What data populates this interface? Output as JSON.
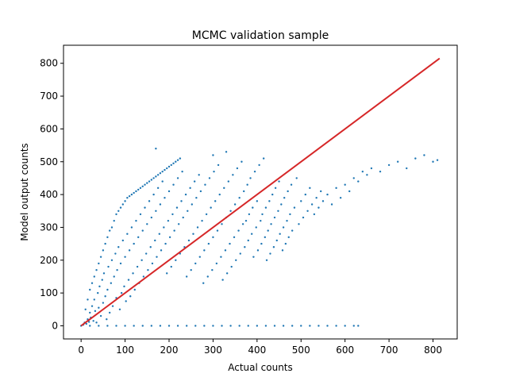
{
  "chart_data": {
    "type": "scatter",
    "title": "MCMC validation sample",
    "xlabel": "Actual counts",
    "ylabel": "Model output counts",
    "xlim": [
      -40,
      855
    ],
    "ylim": [
      -40,
      855
    ],
    "xticks": [
      0,
      100,
      200,
      300,
      400,
      500,
      600,
      700,
      800
    ],
    "yticks": [
      0,
      100,
      200,
      300,
      400,
      500,
      600,
      700,
      800
    ],
    "grid": false,
    "series": [
      {
        "color": "#1f77b4",
        "marker": "point",
        "points": [
          [
            0,
            0
          ],
          [
            5,
            3
          ],
          [
            8,
            10
          ],
          [
            12,
            6
          ],
          [
            15,
            20
          ],
          [
            18,
            12
          ],
          [
            20,
            40
          ],
          [
            22,
            25
          ],
          [
            25,
            60
          ],
          [
            28,
            15
          ],
          [
            30,
            80
          ],
          [
            32,
            45
          ],
          [
            35,
            10
          ],
          [
            38,
            100
          ],
          [
            40,
            55
          ],
          [
            42,
            120
          ],
          [
            45,
            30
          ],
          [
            48,
            140
          ],
          [
            50,
            70
          ],
          [
            52,
            160
          ],
          [
            55,
            90
          ],
          [
            58,
            20
          ],
          [
            60,
            110
          ],
          [
            62,
            180
          ],
          [
            65,
            40
          ],
          [
            68,
            130
          ],
          [
            70,
            200
          ],
          [
            72,
            60
          ],
          [
            75,
            150
          ],
          [
            78,
            220
          ],
          [
            80,
            85
          ],
          [
            82,
            170
          ],
          [
            85,
            240
          ],
          [
            88,
            50
          ],
          [
            90,
            190
          ],
          [
            92,
            100
          ],
          [
            95,
            260
          ],
          [
            98,
            120
          ],
          [
            100,
            210
          ],
          [
            102,
            75
          ],
          [
            105,
            280
          ],
          [
            108,
            140
          ],
          [
            110,
            230
          ],
          [
            112,
            90
          ],
          [
            115,
            300
          ],
          [
            118,
            160
          ],
          [
            120,
            250
          ],
          [
            122,
            110
          ],
          [
            125,
            320
          ],
          [
            128,
            180
          ],
          [
            130,
            270
          ],
          [
            132,
            130
          ],
          [
            135,
            340
          ],
          [
            138,
            200
          ],
          [
            140,
            290
          ],
          [
            142,
            150
          ],
          [
            145,
            360
          ],
          [
            148,
            220
          ],
          [
            150,
            310
          ],
          [
            152,
            170
          ],
          [
            155,
            380
          ],
          [
            158,
            240
          ],
          [
            160,
            330
          ],
          [
            162,
            190
          ],
          [
            165,
            400
          ],
          [
            168,
            260
          ],
          [
            170,
            350
          ],
          [
            172,
            210
          ],
          [
            175,
            420
          ],
          [
            178,
            280
          ],
          [
            180,
            370
          ],
          [
            182,
            230
          ],
          [
            185,
            440
          ],
          [
            188,
            300
          ],
          [
            190,
            390
          ],
          [
            192,
            250
          ],
          [
            195,
            160
          ],
          [
            198,
            320
          ],
          [
            200,
            410
          ],
          [
            202,
            270
          ],
          [
            205,
            180
          ],
          [
            208,
            340
          ],
          [
            210,
            430
          ],
          [
            212,
            290
          ],
          [
            215,
            200
          ],
          [
            218,
            360
          ],
          [
            220,
            450
          ],
          [
            222,
            310
          ],
          [
            225,
            220
          ],
          [
            228,
            380
          ],
          [
            230,
            470
          ],
          [
            232,
            330
          ],
          [
            235,
            240
          ],
          [
            238,
            400
          ],
          [
            240,
            150
          ],
          [
            242,
            350
          ],
          [
            245,
            260
          ],
          [
            248,
            420
          ],
          [
            250,
            170
          ],
          [
            252,
            370
          ],
          [
            255,
            280
          ],
          [
            258,
            440
          ],
          [
            260,
            190
          ],
          [
            262,
            390
          ],
          [
            265,
            300
          ],
          [
            268,
            460
          ],
          [
            270,
            210
          ],
          [
            272,
            410
          ],
          [
            275,
            320
          ],
          [
            278,
            130
          ],
          [
            280,
            230
          ],
          [
            282,
            430
          ],
          [
            285,
            340
          ],
          [
            288,
            150
          ],
          [
            290,
            250
          ],
          [
            292,
            450
          ],
          [
            295,
            360
          ],
          [
            298,
            170
          ],
          [
            300,
            270
          ],
          [
            302,
            470
          ],
          [
            305,
            380
          ],
          [
            308,
            190
          ],
          [
            310,
            290
          ],
          [
            312,
            490
          ],
          [
            315,
            400
          ],
          [
            318,
            210
          ],
          [
            320,
            310
          ],
          [
            322,
            140
          ],
          [
            325,
            420
          ],
          [
            328,
            230
          ],
          [
            330,
            330
          ],
          [
            332,
            160
          ],
          [
            335,
            440
          ],
          [
            338,
            250
          ],
          [
            340,
            350
          ],
          [
            342,
            180
          ],
          [
            345,
            460
          ],
          [
            348,
            270
          ],
          [
            350,
            370
          ],
          [
            352,
            200
          ],
          [
            355,
            480
          ],
          [
            358,
            290
          ],
          [
            360,
            390
          ],
          [
            362,
            220
          ],
          [
            365,
            500
          ],
          [
            368,
            310
          ],
          [
            370,
            410
          ],
          [
            372,
            240
          ],
          [
            375,
            320
          ],
          [
            378,
            430
          ],
          [
            380,
            260
          ],
          [
            382,
            340
          ],
          [
            385,
            450
          ],
          [
            388,
            280
          ],
          [
            390,
            360
          ],
          [
            392,
            210
          ],
          [
            395,
            470
          ],
          [
            398,
            300
          ],
          [
            400,
            380
          ],
          [
            402,
            230
          ],
          [
            405,
            490
          ],
          [
            408,
            320
          ],
          [
            410,
            250
          ],
          [
            412,
            340
          ],
          [
            415,
            510
          ],
          [
            418,
            270
          ],
          [
            420,
            360
          ],
          [
            422,
            200
          ],
          [
            425,
            290
          ],
          [
            428,
            380
          ],
          [
            430,
            220
          ],
          [
            432,
            310
          ],
          [
            435,
            400
          ],
          [
            438,
            240
          ],
          [
            440,
            330
          ],
          [
            442,
            420
          ],
          [
            445,
            260
          ],
          [
            448,
            350
          ],
          [
            450,
            440
          ],
          [
            452,
            280
          ],
          [
            455,
            370
          ],
          [
            458,
            230
          ],
          [
            460,
            300
          ],
          [
            462,
            390
          ],
          [
            465,
            250
          ],
          [
            468,
            320
          ],
          [
            470,
            410
          ],
          [
            472,
            270
          ],
          [
            475,
            340
          ],
          [
            478,
            430
          ],
          [
            480,
            290
          ],
          [
            485,
            360
          ],
          [
            490,
            450
          ],
          [
            495,
            310
          ],
          [
            500,
            380
          ],
          [
            505,
            330
          ],
          [
            510,
            400
          ],
          [
            515,
            350
          ],
          [
            520,
            420
          ],
          [
            525,
            370
          ],
          [
            530,
            340
          ],
          [
            535,
            390
          ],
          [
            540,
            360
          ],
          [
            545,
            410
          ],
          [
            550,
            380
          ],
          [
            560,
            400
          ],
          [
            570,
            370
          ],
          [
            580,
            420
          ],
          [
            590,
            390
          ],
          [
            600,
            430
          ],
          [
            610,
            410
          ],
          [
            620,
            450
          ],
          [
            630,
            440
          ],
          [
            640,
            470
          ],
          [
            650,
            460
          ],
          [
            660,
            480
          ],
          [
            680,
            470
          ],
          [
            700,
            490
          ],
          [
            720,
            500
          ],
          [
            740,
            480
          ],
          [
            760,
            510
          ],
          [
            780,
            520
          ],
          [
            800,
            500
          ],
          [
            810,
            505
          ],
          [
            20,
            0
          ],
          [
            40,
            0
          ],
          [
            60,
            0
          ],
          [
            80,
            0
          ],
          [
            100,
            0
          ],
          [
            120,
            0
          ],
          [
            140,
            0
          ],
          [
            160,
            0
          ],
          [
            180,
            0
          ],
          [
            200,
            0
          ],
          [
            220,
            0
          ],
          [
            240,
            0
          ],
          [
            260,
            0
          ],
          [
            280,
            0
          ],
          [
            300,
            0
          ],
          [
            320,
            0
          ],
          [
            340,
            0
          ],
          [
            360,
            0
          ],
          [
            380,
            0
          ],
          [
            400,
            0
          ],
          [
            420,
            0
          ],
          [
            440,
            0
          ],
          [
            460,
            0
          ],
          [
            480,
            0
          ],
          [
            500,
            0
          ],
          [
            520,
            0
          ],
          [
            540,
            0
          ],
          [
            560,
            0
          ],
          [
            580,
            0
          ],
          [
            600,
            0
          ],
          [
            620,
            0
          ],
          [
            630,
            0
          ],
          [
            10,
            50
          ],
          [
            15,
            80
          ],
          [
            20,
            110
          ],
          [
            25,
            130
          ],
          [
            30,
            150
          ],
          [
            35,
            170
          ],
          [
            40,
            190
          ],
          [
            45,
            210
          ],
          [
            50,
            230
          ],
          [
            55,
            250
          ],
          [
            60,
            270
          ],
          [
            65,
            290
          ],
          [
            70,
            300
          ],
          [
            75,
            320
          ],
          [
            80,
            340
          ],
          [
            85,
            350
          ],
          [
            90,
            360
          ],
          [
            95,
            370
          ],
          [
            100,
            380
          ],
          [
            105,
            390
          ],
          [
            110,
            395
          ],
          [
            115,
            400
          ],
          [
            120,
            405
          ],
          [
            125,
            410
          ],
          [
            130,
            415
          ],
          [
            135,
            420
          ],
          [
            140,
            425
          ],
          [
            145,
            430
          ],
          [
            150,
            435
          ],
          [
            155,
            440
          ],
          [
            160,
            445
          ],
          [
            165,
            450
          ],
          [
            170,
            455
          ],
          [
            175,
            460
          ],
          [
            180,
            465
          ],
          [
            185,
            470
          ],
          [
            190,
            475
          ],
          [
            195,
            480
          ],
          [
            200,
            485
          ],
          [
            205,
            490
          ],
          [
            210,
            495
          ],
          [
            215,
            500
          ],
          [
            220,
            505
          ],
          [
            225,
            510
          ],
          [
            170,
            540
          ],
          [
            300,
            520
          ],
          [
            330,
            530
          ]
        ]
      },
      {
        "color": "#d62728",
        "marker": "line",
        "points": [
          [
            0,
            0
          ],
          [
            815,
            815
          ]
        ]
      }
    ]
  }
}
